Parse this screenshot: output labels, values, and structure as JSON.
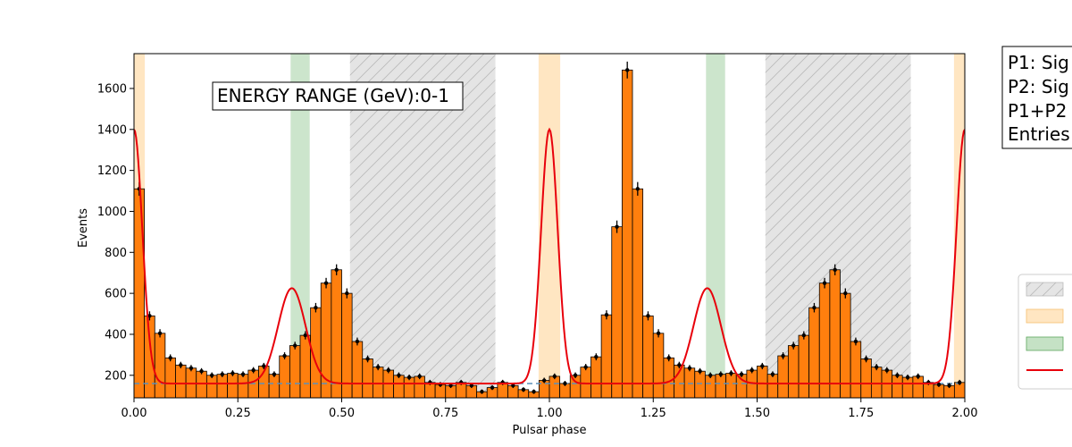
{
  "chart_data": {
    "type": "histogram",
    "xlabel": "Pulsar phase",
    "ylabel": "Events",
    "xlim": [
      0,
      2
    ],
    "ylim": [
      90,
      1770
    ],
    "xticks": [
      0,
      0.25,
      0.5,
      0.75,
      1.0,
      1.25,
      1.5,
      1.75,
      2.0
    ],
    "xtick_labels": [
      "0.00",
      "0.25",
      "0.50",
      "0.75",
      "1.00",
      "1.25",
      "1.50",
      "1.75",
      "2.00"
    ],
    "yticks": [
      200,
      400,
      600,
      800,
      1000,
      1200,
      1400,
      1600
    ],
    "bin_width": 0.025,
    "counts": [
      1110,
      490,
      405,
      285,
      250,
      235,
      220,
      200,
      205,
      210,
      205,
      225,
      245,
      205,
      295,
      345,
      395,
      530,
      650,
      715,
      600,
      365,
      280,
      240,
      225,
      200,
      190,
      195,
      165,
      155,
      150,
      165,
      150,
      120,
      140,
      165,
      150,
      130,
      120,
      175,
      195,
      160,
      200,
      240,
      290,
      495,
      925,
      1690
    ],
    "background_level": 160,
    "fit_curve": {
      "baseline": 160,
      "peaks": [
        {
          "center": 0.0,
          "amplitude": 1240,
          "sigma": 0.02
        },
        {
          "center": 0.38,
          "amplitude": 465,
          "sigma": 0.033
        }
      ]
    },
    "shaded_regions": {
      "off_pulse": [
        [
          0.52,
          0.87
        ],
        [
          1.52,
          1.87
        ]
      ],
      "p1": [
        [
          0.0,
          0.026
        ],
        [
          0.974,
          1.026
        ],
        [
          1.974,
          2.0
        ]
      ],
      "p2": [
        [
          0.377,
          0.423
        ],
        [
          1.377,
          1.423
        ]
      ]
    },
    "annotation": "ENERGY RANGE (GeV):0-1",
    "stats_box": [
      "P1: Sig",
      "P2: Sig",
      "P1+P2",
      "Entries"
    ],
    "colors": {
      "bars": "#ff7f0e",
      "fit": "#e8000b",
      "background_line": "#5b8fb9",
      "off_pulse": "#d3d3d3",
      "p1": "#ffd59a",
      "p2": "#7fbf7f",
      "error_bars": "#000000"
    }
  }
}
